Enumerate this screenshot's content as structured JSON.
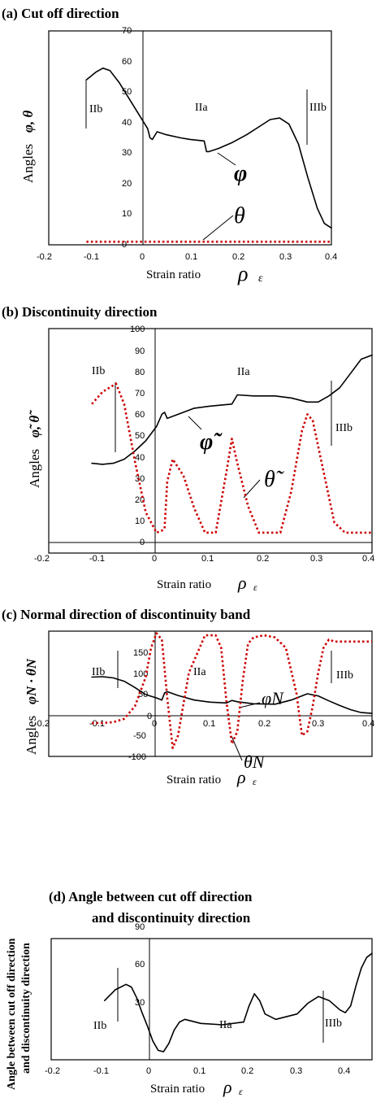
{
  "chart_data": [
    {
      "type": "line",
      "title": "(a)  Cut off direction",
      "xlabel": "Strain ratio",
      "xsym": "ρ",
      "xsub": "ε",
      "ylabel": "Angles",
      "ysym": "φ, θ",
      "xlim": [
        -0.2,
        0.4
      ],
      "ylim": [
        0,
        70
      ],
      "xticks": [
        "-0.2",
        "-0.1",
        "0",
        "0.1",
        "0.2",
        "0.3",
        "0.4"
      ],
      "yticks": [
        "0",
        "10",
        "20",
        "30",
        "40",
        "50",
        "60",
        "70"
      ],
      "regions": [
        "IIb",
        "IIa",
        "IIIb"
      ],
      "annotations": [
        "φ",
        "θ"
      ],
      "series": [
        {
          "name": "φ",
          "style": "solid",
          "color": "#000000",
          "x": [
            -0.12,
            -0.1,
            -0.085,
            -0.07,
            -0.05,
            -0.03,
            -0.01,
            0.0,
            0.01,
            0.015,
            0.02,
            0.03,
            0.05,
            0.08,
            0.1,
            0.13,
            0.135,
            0.14,
            0.16,
            0.19,
            0.22,
            0.25,
            0.27,
            0.29,
            0.31,
            0.33,
            0.35,
            0.37,
            0.385,
            0.4
          ],
          "y": [
            54,
            56.5,
            57.8,
            57,
            53,
            48,
            43,
            40.5,
            38,
            35,
            34.5,
            37,
            36,
            35,
            34.5,
            34,
            30.5,
            30.5,
            31.5,
            33.5,
            36,
            39,
            41,
            41.5,
            39.5,
            33,
            22,
            12,
            7,
            5.5
          ]
        },
        {
          "name": "θ",
          "style": "dotted",
          "color": "#cc0000",
          "x": [
            -0.12,
            0.4
          ],
          "y": [
            1,
            1
          ]
        }
      ]
    },
    {
      "type": "line",
      "title": "(b)  Discontinuity direction",
      "xlabel": "Strain ratio",
      "xsym": "ρ",
      "xsub": "ε",
      "ylabel": "Angles",
      "ysym": "φ̃,  θ̃",
      "xlim": [
        -0.2,
        0.4
      ],
      "ylim": [
        -10,
        100
      ],
      "xticks": [
        "-0.2",
        "-0.1",
        "0",
        "0.1",
        "0.2",
        "0.3",
        "0.4"
      ],
      "yticks": [
        "0",
        "10",
        "20",
        "30",
        "40",
        "50",
        "60",
        "70",
        "80",
        "90",
        "100"
      ],
      "regions": [
        "IIb",
        "IIa",
        "IIIb"
      ],
      "annotations": [
        "φ̃",
        "θ̃"
      ],
      "series": [
        {
          "name": "φ̃",
          "style": "solid",
          "color": "#000000",
          "x": [
            -0.12,
            -0.1,
            -0.08,
            -0.06,
            -0.04,
            -0.02,
            0.0,
            0.01,
            0.015,
            0.02,
            0.04,
            0.07,
            0.1,
            0.12,
            0.14,
            0.15,
            0.18,
            0.22,
            0.25,
            0.28,
            0.3,
            0.32,
            0.34,
            0.36,
            0.38,
            0.4
          ],
          "y": [
            34,
            33.5,
            34,
            36,
            40,
            45,
            52,
            58,
            59,
            56,
            58,
            61,
            62,
            62.5,
            63,
            67.5,
            67,
            67,
            66,
            64,
            64,
            67,
            71,
            78,
            85,
            87
          ]
        },
        {
          "name": "θ̃",
          "style": "dotted",
          "color": "#cc0000",
          "x": [
            -0.12,
            -0.1,
            -0.075,
            -0.06,
            -0.04,
            -0.02,
            0.0,
            0.01,
            0.015,
            0.02,
            0.03,
            0.05,
            0.07,
            0.09,
            0.11,
            0.13,
            0.14,
            0.15,
            0.17,
            0.19,
            0.21,
            0.23,
            0.25,
            0.27,
            0.28,
            0.29,
            0.31,
            0.33,
            0.35,
            0.38,
            0.4
          ],
          "y": [
            63,
            69,
            73,
            63,
            35,
            10,
            0,
            1,
            2,
            25,
            36,
            28,
            12,
            0,
            0,
            30,
            46,
            34,
            13,
            0,
            0,
            0,
            20,
            50,
            58,
            55,
            30,
            5,
            0,
            0,
            0
          ]
        }
      ]
    },
    {
      "type": "line",
      "title": "(c)  Normal direction of discontinuity band",
      "xlabel": "Strain ratio",
      "xsym": "ρ",
      "xsub": "ε",
      "ylabel": "Angles",
      "ysym": "φN ·  θN",
      "xlim": [
        -0.2,
        0.4
      ],
      "ylim": [
        -100,
        200
      ],
      "xticks": [
        "-0.2",
        "-0.1",
        "0",
        "0.1",
        "0.2",
        "0.3",
        "0.4"
      ],
      "yticks": [
        "-100",
        "-50",
        "0",
        "50",
        "100",
        "150"
      ],
      "regions": [
        "IIb",
        "IIa",
        "IIIb"
      ],
      "annotations": [
        "φN",
        "θN"
      ],
      "series": [
        {
          "name": "φN",
          "style": "solid",
          "color": "#000000",
          "x": [
            -0.12,
            -0.1,
            -0.08,
            -0.06,
            -0.04,
            -0.02,
            0.0,
            0.01,
            0.015,
            0.02,
            0.04,
            0.07,
            0.1,
            0.13,
            0.14,
            0.15,
            0.18,
            0.22,
            0.25,
            0.28,
            0.3,
            0.32,
            0.34,
            0.36,
            0.38,
            0.4
          ],
          "y": [
            90,
            91,
            88,
            80,
            65,
            48,
            40,
            35,
            52,
            55,
            46,
            35,
            30,
            28,
            34,
            31,
            26,
            25,
            35,
            50,
            45,
            33,
            22,
            12,
            5,
            3
          ]
        },
        {
          "name": "θN",
          "style": "dotted",
          "color": "#cc0000",
          "x": [
            -0.12,
            -0.1,
            -0.08,
            -0.06,
            -0.04,
            -0.02,
            -0.01,
            0.0,
            0.01,
            0.02,
            0.03,
            0.04,
            0.06,
            0.09,
            0.11,
            0.12,
            0.13,
            0.14,
            0.15,
            0.16,
            0.17,
            0.18,
            0.2,
            0.22,
            0.24,
            0.26,
            0.27,
            0.28,
            0.29,
            0.3,
            0.31,
            0.32,
            0.33,
            0.35,
            0.37,
            0.4
          ],
          "y": [
            -20,
            -20,
            -18,
            -10,
            20,
            90,
            160,
            195,
            180,
            40,
            -80,
            -50,
            100,
            190,
            190,
            160,
            30,
            -70,
            -40,
            80,
            170,
            185,
            190,
            185,
            160,
            50,
            -50,
            -40,
            20,
            100,
            160,
            180,
            175,
            175,
            175,
            175
          ]
        }
      ]
    },
    {
      "type": "line",
      "title": "(d) Angle between cut off direction",
      "title2": "and discontinuity direction",
      "xlabel": "Strain ratio",
      "xsym": "ρ",
      "xsub": "ε",
      "ylabel": "Angle between cut off direction",
      "ylabel2": "and discontinuity direction",
      "xlim": [
        -0.2,
        0.4
      ],
      "ylim": [
        0,
        90
      ],
      "xticks": [
        "-0.2",
        "-0.1",
        "0",
        "0.1",
        "0.2",
        "0.3",
        "0.4"
      ],
      "yticks": [
        "30",
        "60",
        "90"
      ],
      "regions": [
        "IIb",
        "IIa",
        "IIIb"
      ],
      "series": [
        {
          "name": "",
          "style": "solid",
          "color": "#000000",
          "x": [
            -0.1,
            -0.08,
            -0.06,
            -0.05,
            -0.04,
            -0.03,
            -0.02,
            -0.01,
            0.0,
            0.01,
            0.02,
            0.03,
            0.04,
            0.05,
            0.08,
            0.12,
            0.16,
            0.17,
            0.18,
            0.19,
            0.2,
            0.22,
            0.26,
            0.28,
            0.3,
            0.32,
            0.34,
            0.35,
            0.36,
            0.37,
            0.38,
            0.39,
            0.4
          ],
          "y": [
            44,
            52,
            56,
            54,
            46,
            35,
            25,
            14,
            7,
            6,
            12,
            22,
            28,
            30,
            27,
            26,
            28,
            40,
            49,
            44,
            34,
            30,
            34,
            42,
            47,
            44,
            37,
            35,
            40,
            55,
            68,
            76,
            79
          ]
        }
      ]
    }
  ]
}
